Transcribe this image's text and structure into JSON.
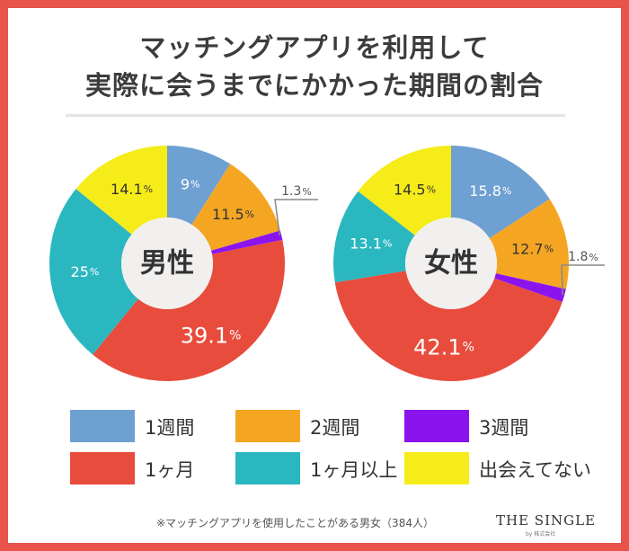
{
  "title": {
    "line1": "マッチングアプリを利用して",
    "line2": "実際に会うまでにかかった期間の割合"
  },
  "colors": {
    "frame": "#e8534a",
    "1週間": "#6fa0d2",
    "2週間": "#f4a623",
    "3週間": "#8b14ee",
    "1ヶ月": "#e84c3d",
    "1ヶ月以上": "#2bb7c0",
    "出会えてない": "#f6ec1a"
  },
  "legend": [
    {
      "label": "1週間",
      "color": "#6fa0d2"
    },
    {
      "label": "2週間",
      "color": "#f4a623"
    },
    {
      "label": "3週間",
      "color": "#8b14ee"
    },
    {
      "label": "1ヶ月",
      "color": "#e84c3d"
    },
    {
      "label": "1ヶ月以上",
      "color": "#2bb7c0"
    },
    {
      "label": "出会えてない",
      "color": "#f6ec1a"
    }
  ],
  "chart_data": [
    {
      "type": "pie",
      "center_label": "男性",
      "categories": [
        "1週間",
        "2週間",
        "3週間",
        "1ヶ月",
        "1ヶ月以上",
        "出会えてない"
      ],
      "values": [
        9,
        11.5,
        1.3,
        39.1,
        25,
        14.1
      ],
      "labels": [
        "9%",
        "11.5%",
        "1.3%",
        "39.1%",
        "25%",
        "14.1%"
      ]
    },
    {
      "type": "pie",
      "center_label": "女性",
      "categories": [
        "1週間",
        "2週間",
        "3週間",
        "1ヶ月",
        "1ヶ月以上",
        "出会えてない"
      ],
      "values": [
        15.8,
        12.7,
        1.8,
        42.1,
        13.1,
        14.5
      ],
      "labels": [
        "15.8%",
        "12.7%",
        "1.8%",
        "42.1%",
        "13.1%",
        "14.5%"
      ]
    }
  ],
  "footnote": "※マッチングアプリを使用したことがある男女（384人）",
  "logo": {
    "name": "THE SINGLE",
    "tagline": "by 株式会社"
  }
}
